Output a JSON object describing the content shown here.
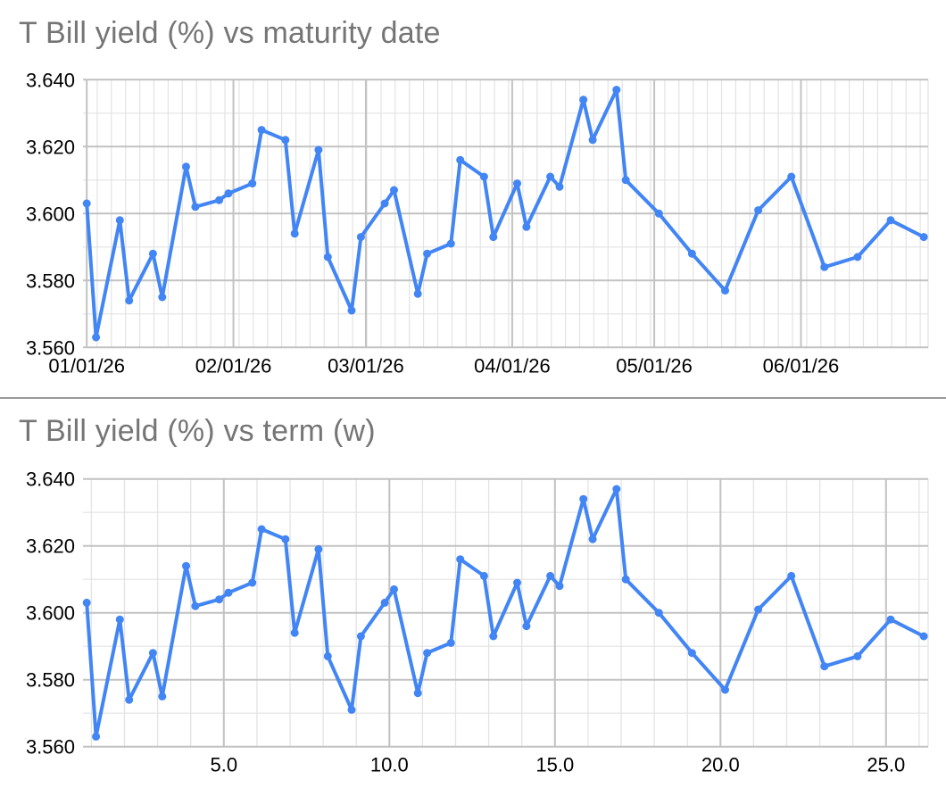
{
  "app": {
    "description": "Two stacked line charts of T Bill yields",
    "background": "#ffffff"
  },
  "style": {
    "series_color": "#4285f4",
    "title_color": "#757575",
    "axis_label_color": "#000000",
    "grid_major_color": "#c2c2c2",
    "grid_minor_color": "#e3e3e3",
    "divider_color": "#9a9a9a",
    "background": "#ffffff"
  },
  "chart_data": {
    "type": "line",
    "series_shared": {
      "name": "T Bill yield (%)",
      "maturity_dates": [
        "01/01/26",
        "01/03/26",
        "01/08/26",
        "01/10/26",
        "01/15/26",
        "01/17/26",
        "01/22/26",
        "01/24/26",
        "01/29/26",
        "01/31/26",
        "02/05/26",
        "02/07/26",
        "02/12/26",
        "02/14/26",
        "02/19/26",
        "02/21/26",
        "02/26/26",
        "02/28/26",
        "03/05/26",
        "03/07/26",
        "03/12/26",
        "03/14/26",
        "03/19/26",
        "03/21/26",
        "03/26/26",
        "03/28/26",
        "04/02/26",
        "04/04/26",
        "04/09/26",
        "04/11/26",
        "04/16/26",
        "04/18/26",
        "04/23/26",
        "04/25/26",
        "05/02/26",
        "05/09/26",
        "05/16/26",
        "05/23/26",
        "05/30/26",
        "06/06/26",
        "06/13/26",
        "06/20/26",
        "06/27/26"
      ],
      "term_weeks": [
        0.86,
        1.14,
        1.86,
        2.14,
        2.86,
        3.14,
        3.86,
        4.14,
        4.86,
        5.14,
        5.86,
        6.14,
        6.86,
        7.14,
        7.86,
        8.14,
        8.86,
        9.14,
        9.86,
        10.14,
        10.86,
        11.14,
        11.86,
        12.14,
        12.86,
        13.14,
        13.86,
        14.14,
        14.86,
        15.14,
        15.86,
        16.14,
        16.86,
        17.14,
        18.14,
        19.14,
        20.14,
        21.14,
        22.14,
        23.14,
        24.14,
        25.14,
        26.14
      ],
      "yields_pct": [
        3.603,
        3.563,
        3.598,
        3.574,
        3.588,
        3.575,
        3.614,
        3.602,
        3.604,
        3.606,
        3.609,
        3.625,
        3.622,
        3.594,
        3.619,
        3.587,
        3.571,
        3.593,
        3.603,
        3.607,
        3.576,
        3.588,
        3.591,
        3.616,
        3.611,
        3.593,
        3.609,
        3.596,
        3.611,
        3.608,
        3.634,
        3.622,
        3.637,
        3.61,
        3.6,
        3.588,
        3.577,
        3.601,
        3.611,
        3.584,
        3.587,
        3.598,
        3.593
      ]
    },
    "charts": [
      {
        "id": "maturity",
        "title": "T Bill yield (%) vs maturity date",
        "x_axis": "maturity date",
        "ylim": [
          3.56,
          3.64
        ],
        "y_major_step": 0.02,
        "y_minor_step": 0.01,
        "y_tick_labels": [
          "3.560",
          "3.580",
          "3.600",
          "3.620",
          "3.640"
        ],
        "x_ticks": [
          {
            "label": "01/01/26",
            "week": 0.86
          },
          {
            "label": "02/01/26",
            "week": 5.29
          },
          {
            "label": "03/01/26",
            "week": 9.29
          },
          {
            "label": "04/01/26",
            "week": 13.71
          },
          {
            "label": "05/01/26",
            "week": 18.0
          },
          {
            "label": "06/01/26",
            "week": 22.43
          }
        ],
        "grid": true,
        "legend": "none"
      },
      {
        "id": "term",
        "title": "T Bill yield (%) vs term (w)",
        "x_axis": "term (w)",
        "ylim": [
          3.56,
          3.64
        ],
        "y_major_step": 0.02,
        "y_minor_step": 0.01,
        "y_tick_labels": [
          "3.560",
          "3.580",
          "3.600",
          "3.620",
          "3.640"
        ],
        "x_ticks": [
          {
            "label": "5.0",
            "week": 5
          },
          {
            "label": "10.0",
            "week": 10
          },
          {
            "label": "15.0",
            "week": 15
          },
          {
            "label": "20.0",
            "week": 20
          },
          {
            "label": "25.0",
            "week": 25
          }
        ],
        "grid": true,
        "legend": "none"
      }
    ]
  }
}
